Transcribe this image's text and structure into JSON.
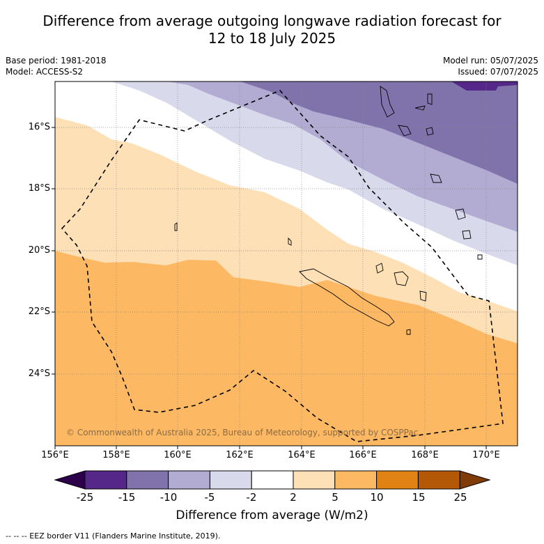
{
  "title_line1": "Difference from average outgoing longwave radiation forecast for",
  "title_line2": "12 to 18 July 2025",
  "meta": {
    "base_period": "Base period: 1981-2018",
    "model": "Model: ACCESS-S2",
    "model_run": "Model run: 05/07/2025",
    "issued": "Issued: 07/07/2025"
  },
  "map": {
    "x_ticks": [
      "156°E",
      "158°E",
      "160°E",
      "162°E",
      "164°E",
      "166°E",
      "168°E",
      "170°E"
    ],
    "y_ticks": [
      "16°S",
      "18°S",
      "20°S",
      "22°S",
      "24°S"
    ],
    "copyright": "© Commonwealth of Australia 2025, Bureau of Meteorology, supported by COSPPac"
  },
  "colorbar": {
    "title": "Difference from average (W/m2)",
    "labels": [
      "-25",
      "-15",
      "-10",
      "-5",
      "-2",
      "2",
      "5",
      "10",
      "15",
      "25"
    ],
    "colors": [
      "#2d004b",
      "#542788",
      "#8073ac",
      "#b2abd2",
      "#d8daeb",
      "#ffffff",
      "#fee0b6",
      "#fdb863",
      "#e08214",
      "#b35806",
      "#7f3b08"
    ]
  },
  "footnote": "--  --  -- EEZ border V11 (Flanders Marine Institute, 2019)."
}
